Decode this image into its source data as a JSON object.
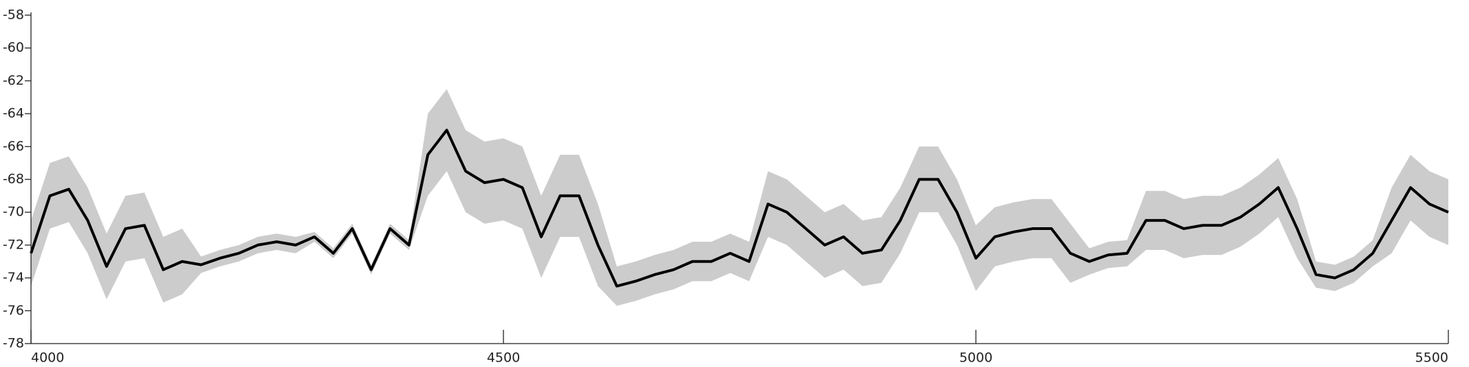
{
  "chart_data": {
    "type": "line",
    "x": [
      4000,
      4020,
      4040,
      4060,
      4080,
      4100,
      4120,
      4140,
      4160,
      4180,
      4200,
      4220,
      4240,
      4260,
      4280,
      4300,
      4320,
      4340,
      4360,
      4380,
      4400,
      4420,
      4440,
      4460,
      4480,
      4500,
      4520,
      4540,
      4560,
      4580,
      4600,
      4620,
      4640,
      4660,
      4680,
      4700,
      4720,
      4740,
      4760,
      4780,
      4800,
      4820,
      4840,
      4860,
      4880,
      4900,
      4920,
      4940,
      4960,
      4980,
      5000,
      5020,
      5040,
      5060,
      5080,
      5100,
      5120,
      5140,
      5160,
      5180,
      5200,
      5220,
      5240,
      5260,
      5280,
      5300,
      5320,
      5340,
      5360,
      5380,
      5400,
      5420,
      5440,
      5460,
      5480,
      5500
    ],
    "series": [
      {
        "color": "#000000",
        "values": [
          -72.5,
          -69,
          -68.6,
          -70.5,
          -73.3,
          -71,
          -70.8,
          -73.5,
          -73,
          -73.2,
          -72.8,
          -72.5,
          -72,
          -71.8,
          -72,
          -71.5,
          -72.5,
          -71,
          -73.5,
          -71,
          -72,
          -66.5,
          -65,
          -67.5,
          -68.2,
          -68,
          -68.5,
          -71.5,
          -69,
          -69,
          -72,
          -74.5,
          -74.2,
          -73.8,
          -73.5,
          -73,
          -73,
          -72.5,
          -73,
          -69.5,
          -70,
          -71,
          -72,
          -71.5,
          -72.5,
          -72.3,
          -70.5,
          -68,
          -68,
          -70,
          -72.8,
          -71.5,
          -71.2,
          -71,
          -71,
          -72.5,
          -73,
          -72.6,
          -72.5,
          -70.5,
          -70.5,
          -71,
          -70.8,
          -70.8,
          -70.3,
          -69.5,
          -68.5,
          -71,
          -73.8,
          -74,
          -73.5,
          -72.5,
          -70.5,
          -68.5,
          -69.5,
          -70
        ]
      }
    ],
    "band": {
      "color": "#cccccc",
      "upper": [
        -70.5,
        -67,
        -66.6,
        -68.5,
        -71.3,
        -69,
        -68.8,
        -71.5,
        -71,
        -72.7,
        -72.3,
        -72,
        -71.5,
        -71.3,
        -71.5,
        -71.2,
        -72.2,
        -70.7,
        -73.2,
        -70.7,
        -71.7,
        -64,
        -62.5,
        -65,
        -65.7,
        -65.5,
        -66,
        -69,
        -66.5,
        -66.5,
        -69.5,
        -73.3,
        -73,
        -72.6,
        -72.3,
        -71.8,
        -71.8,
        -71.3,
        -71.8,
        -67.5,
        -68,
        -69,
        -70,
        -69.5,
        -70.5,
        -70.3,
        -68.5,
        -66,
        -66,
        -68,
        -70.8,
        -69.7,
        -69.4,
        -69.2,
        -69.2,
        -70.7,
        -72.2,
        -71.8,
        -71.7,
        -68.7,
        -68.7,
        -69.2,
        -69,
        -69,
        -68.5,
        -67.7,
        -66.7,
        -69.2,
        -73,
        -73.2,
        -72.7,
        -71.7,
        -68.5,
        -66.5,
        -67.5,
        -68
      ],
      "lower": [
        -74.5,
        -71,
        -70.6,
        -72.5,
        -75.3,
        -73,
        -72.8,
        -75.5,
        -75,
        -73.7,
        -73.3,
        -73,
        -72.5,
        -72.3,
        -72.5,
        -71.8,
        -72.8,
        -71.3,
        -73.8,
        -71.3,
        -72.3,
        -69,
        -67.5,
        -70,
        -70.7,
        -70.5,
        -71,
        -74,
        -71.5,
        -71.5,
        -74.5,
        -75.7,
        -75.4,
        -75,
        -74.7,
        -74.2,
        -74.2,
        -73.7,
        -74.2,
        -71.5,
        -72,
        -73,
        -74,
        -73.5,
        -74.5,
        -74.3,
        -72.5,
        -70,
        -70,
        -72,
        -74.8,
        -73.3,
        -73,
        -72.8,
        -72.8,
        -74.3,
        -73.8,
        -73.4,
        -73.3,
        -72.3,
        -72.3,
        -72.8,
        -72.6,
        -72.6,
        -72.1,
        -71.3,
        -70.3,
        -72.8,
        -74.6,
        -74.8,
        -74.3,
        -73.3,
        -72.5,
        -70.5,
        -71.5,
        -72
      ]
    },
    "xlim": [
      4000,
      5500
    ],
    "xticks": [
      4000,
      4500,
      5000,
      5500
    ],
    "ylim": [
      -78,
      -58
    ],
    "yticks": [
      -78,
      -76,
      -74,
      -72,
      -70,
      -68,
      -66,
      -64,
      -62,
      -60,
      -58
    ]
  }
}
